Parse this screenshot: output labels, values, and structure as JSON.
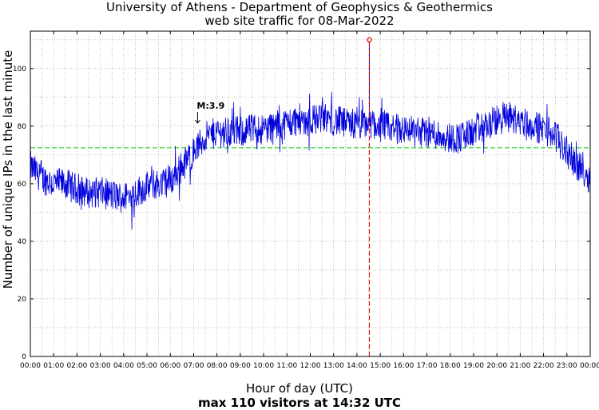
{
  "chart_data": {
    "type": "line",
    "title": "University of Athens - Department of Geophysics & Geothermics",
    "subtitle": "web site traffic for 08-Mar-2022",
    "xlabel": "Hour of day (UTC)",
    "ylabel": "Number of unique IPs in the last minute",
    "footer": "max 110 visitors at 14:32 UTC",
    "x_tick_labels": [
      "00:00",
      "01:00",
      "02:00",
      "03:00",
      "04:00",
      "05:00",
      "06:00",
      "07:00",
      "08:00",
      "09:00",
      "10:00",
      "11:00",
      "12:00",
      "13:00",
      "14:00",
      "15:00",
      "16:00",
      "17:00",
      "18:00",
      "19:00",
      "20:00",
      "21:00",
      "22:00",
      "23:00",
      "00:00"
    ],
    "y_ticks": [
      0,
      20,
      40,
      60,
      80,
      100
    ],
    "xlim": [
      0,
      24
    ],
    "ylim": [
      0,
      113
    ],
    "grid": true,
    "series": [
      {
        "color": "#0000dd",
        "x": [
          0,
          0.5,
          1,
          1.5,
          2,
          2.5,
          3,
          3.5,
          4,
          4.5,
          5,
          5.5,
          6,
          6.5,
          7,
          7.5,
          8,
          8.5,
          9,
          9.5,
          10,
          10.5,
          11,
          11.5,
          12,
          12.5,
          13,
          13.5,
          14,
          14.5,
          15,
          15.5,
          16,
          16.5,
          17,
          17.5,
          18,
          18.5,
          19,
          19.5,
          20,
          20.5,
          21,
          21.5,
          22,
          22.5,
          23,
          23.5,
          24
        ],
        "y": [
          66,
          62,
          60,
          60,
          58,
          57,
          57,
          56,
          55,
          57,
          59,
          60,
          61,
          66,
          71,
          76,
          78,
          78,
          78,
          79,
          79,
          80,
          81,
          82,
          82,
          83,
          82,
          81,
          80,
          81,
          80,
          79,
          79,
          78,
          78,
          77,
          76,
          76,
          78,
          80,
          82,
          83,
          82,
          80,
          79,
          77,
          71,
          66,
          62
        ]
      }
    ],
    "average_line": {
      "value": 72.5,
      "color": "#00cc00"
    },
    "max_marker": {
      "time": "14:32",
      "hour": 14.533,
      "value": 110,
      "color": "#dd0000"
    },
    "annotation": {
      "text": "M:3.9",
      "hour": 7.17,
      "value": 83
    }
  }
}
